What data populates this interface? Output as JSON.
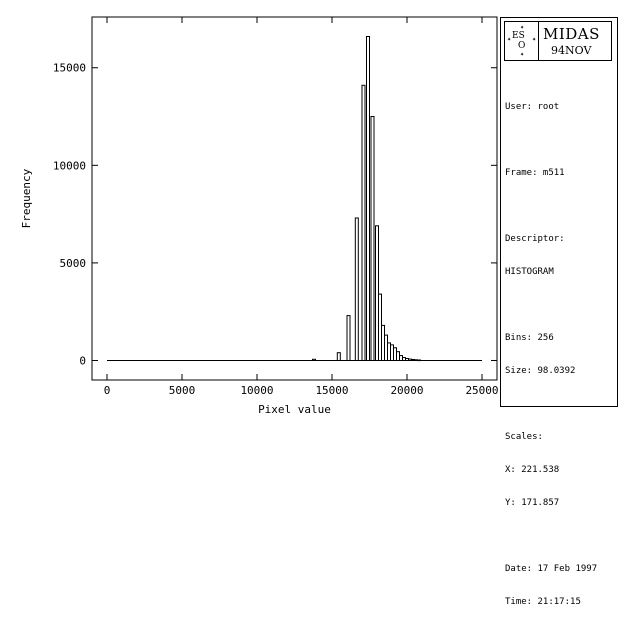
{
  "chart_data": {
    "type": "bar",
    "title": "",
    "xlabel": "Pixel value",
    "ylabel": "Frequency",
    "xlim": [
      -1000,
      26000
    ],
    "ylim": [
      -1000,
      17600
    ],
    "xticks": [
      0,
      5000,
      10000,
      15000,
      20000,
      25000
    ],
    "yticks": [
      0,
      5000,
      10000,
      15000
    ],
    "baseline": {
      "x_start": 0,
      "x_end": 25000
    },
    "grid": false,
    "legend": "none",
    "bin_width": 98.0392,
    "bars": [
      {
        "x": 13800,
        "y": 60
      },
      {
        "x": 15450,
        "y": 400
      },
      {
        "x": 16100,
        "y": 2300
      },
      {
        "x": 16650,
        "y": 7300
      },
      {
        "x": 17100,
        "y": 14100
      },
      {
        "x": 17400,
        "y": 16600
      },
      {
        "x": 17700,
        "y": 12500
      },
      {
        "x": 18000,
        "y": 6900
      },
      {
        "x": 18200,
        "y": 3400
      },
      {
        "x": 18400,
        "y": 1800
      },
      {
        "x": 18600,
        "y": 1300
      },
      {
        "x": 18800,
        "y": 900
      },
      {
        "x": 19000,
        "y": 800
      },
      {
        "x": 19200,
        "y": 650
      },
      {
        "x": 19400,
        "y": 450
      },
      {
        "x": 19600,
        "y": 250
      },
      {
        "x": 19800,
        "y": 150
      },
      {
        "x": 20000,
        "y": 100
      },
      {
        "x": 20200,
        "y": 70
      },
      {
        "x": 20400,
        "y": 50
      },
      {
        "x": 20600,
        "y": 35
      },
      {
        "x": 20800,
        "y": 25
      }
    ]
  },
  "info_panel": {
    "logo": {
      "left_text": "ES",
      "bottom_text": "O",
      "title": "MIDAS",
      "version": "94NOV"
    },
    "lines": [
      "User: root",
      "",
      "Frame: m511",
      "",
      "Descriptor:",
      "HISTOGRAM",
      "",
      "Bins: 256",
      "Size: 98.0392",
      "",
      "Scales:",
      "X: 221.538",
      "Y: 171.857",
      "",
      "Date: 17 Feb 1997",
      "Time: 21:17:15"
    ]
  }
}
